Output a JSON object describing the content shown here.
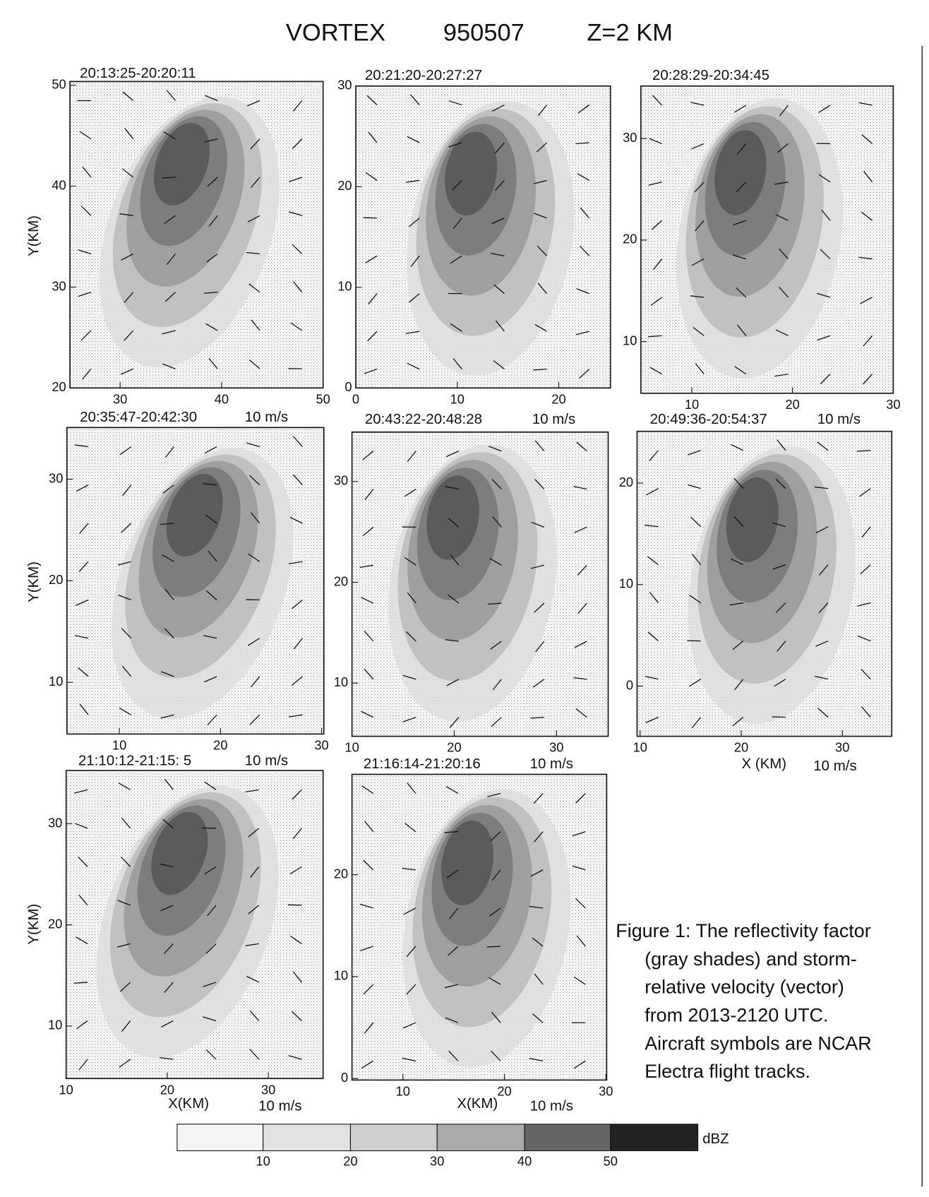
{
  "header": {
    "parts": [
      "VORTEX",
      "950507",
      "Z=2 KM"
    ]
  },
  "panels": [
    {
      "title": "20:13:25-20:20:11",
      "yticks": [
        "50",
        "40",
        "30",
        "20"
      ],
      "xticks": [
        "30",
        "40",
        "50"
      ],
      "y_label": "Y(KM)"
    },
    {
      "title": "20:21:20-20:27:27",
      "yticks": [
        "30",
        "20",
        "10",
        "0"
      ],
      "xticks": [
        "0",
        "10",
        "20"
      ]
    },
    {
      "title": "20:28:29-20:34:45",
      "yticks": [
        "30",
        "20",
        "10"
      ],
      "xticks": [
        "10",
        "20",
        "30"
      ]
    },
    {
      "title": "20:35:47-20:42:30",
      "scale_label": "10 m/s",
      "yticks": [
        "30",
        "20",
        "10"
      ],
      "xticks": [
        "10",
        "20",
        "30"
      ],
      "y_label": "Y(KM)"
    },
    {
      "title": "20:43:22-20:48:28",
      "scale_label": "10 m/s",
      "yticks": [
        "30",
        "20",
        "10"
      ],
      "xticks": [
        "10",
        "20",
        "30"
      ]
    },
    {
      "title": "20:49:36-20:54:37",
      "scale_label": "10 m/s",
      "yticks": [
        "20",
        "10",
        "0"
      ],
      "xticks": [
        "10",
        "20",
        "30"
      ],
      "x_label": "X (KM)",
      "bottom_scale_label": "10 m/s"
    },
    {
      "title": "21:10:12-21:15: 5",
      "scale_label": "10 m/s",
      "yticks": [
        "30",
        "20",
        "10"
      ],
      "xticks": [
        "10",
        "20",
        "30"
      ],
      "y_label": "Y(KM)",
      "x_label": "X(KM)",
      "bottom_scale_label": "10 m/s"
    },
    {
      "title": "21:16:14-21:20:16",
      "scale_label": "10 m/s",
      "yticks": [
        "20",
        "10",
        "0"
      ],
      "xticks": [
        "10",
        "20",
        "30"
      ],
      "x_label": "X(KM)",
      "bottom_scale_label": "10 m/s"
    }
  ],
  "colorbar": {
    "ticks": [
      "10",
      "20",
      "30",
      "40",
      "50"
    ],
    "unit": "dBZ"
  },
  "caption": {
    "lines": [
      "Figure 1: The reflectivity factor",
      "(gray shades) and storm-",
      "relative velocity (vector)",
      "from 2013-2120 UTC.",
      "Aircraft symbols are NCAR",
      "Electra flight tracks."
    ]
  }
}
